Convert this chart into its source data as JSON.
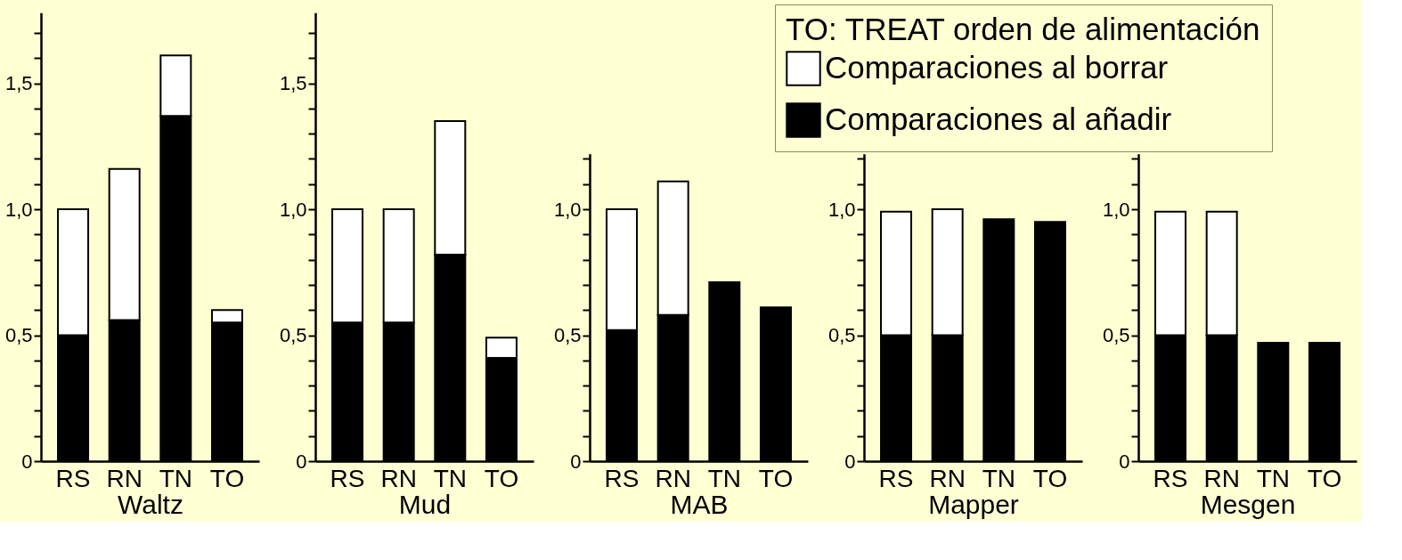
{
  "chart_data": [
    {
      "type": "bar",
      "stacked": true,
      "xlabel": "Waltz",
      "categories": [
        "RS",
        "RN",
        "TN",
        "TO"
      ],
      "series": [
        {
          "color": "#000000",
          "values": [
            0.5,
            0.56,
            1.37,
            0.55
          ]
        },
        {
          "color": "#ffffff",
          "values": [
            0.5,
            0.6,
            0.24,
            0.05
          ]
        }
      ],
      "ylim": [
        0,
        1.78
      ],
      "yticks": [
        {
          "value": 0,
          "label": "0"
        },
        {
          "value": 0.1,
          "label": null
        },
        {
          "value": 0.2,
          "label": null
        },
        {
          "value": 0.3,
          "label": null
        },
        {
          "value": 0.4,
          "label": null
        },
        {
          "value": 0.5,
          "label": "0,5"
        },
        {
          "value": 0.6,
          "label": null
        },
        {
          "value": 0.7,
          "label": null
        },
        {
          "value": 0.8,
          "label": null
        },
        {
          "value": 0.9,
          "label": null
        },
        {
          "value": 1.0,
          "label": "1,0"
        },
        {
          "value": 1.1,
          "label": null
        },
        {
          "value": 1.2,
          "label": null
        },
        {
          "value": 1.3,
          "label": null
        },
        {
          "value": 1.4,
          "label": null
        },
        {
          "value": 1.5,
          "label": "1,5"
        },
        {
          "value": 1.6,
          "label": null
        },
        {
          "value": 1.7,
          "label": null
        }
      ],
      "grid": false
    },
    {
      "type": "bar",
      "stacked": true,
      "xlabel": "Mud",
      "categories": [
        "RS",
        "RN",
        "TN",
        "TO"
      ],
      "series": [
        {
          "color": "#000000",
          "values": [
            0.55,
            0.55,
            0.82,
            0.41
          ]
        },
        {
          "color": "#ffffff",
          "values": [
            0.45,
            0.45,
            0.53,
            0.08
          ]
        }
      ],
      "ylim": [
        0,
        1.78
      ],
      "yticks": [
        {
          "value": 0,
          "label": "0"
        },
        {
          "value": 0.1,
          "label": null
        },
        {
          "value": 0.2,
          "label": null
        },
        {
          "value": 0.3,
          "label": null
        },
        {
          "value": 0.4,
          "label": null
        },
        {
          "value": 0.5,
          "label": "0,5"
        },
        {
          "value": 0.6,
          "label": null
        },
        {
          "value": 0.7,
          "label": null
        },
        {
          "value": 0.8,
          "label": null
        },
        {
          "value": 0.9,
          "label": null
        },
        {
          "value": 1.0,
          "label": "1,0"
        },
        {
          "value": 1.1,
          "label": null
        },
        {
          "value": 1.2,
          "label": null
        },
        {
          "value": 1.3,
          "label": null
        },
        {
          "value": 1.4,
          "label": null
        },
        {
          "value": 1.5,
          "label": "1,5"
        },
        {
          "value": 1.6,
          "label": null
        },
        {
          "value": 1.7,
          "label": null
        }
      ],
      "grid": false
    },
    {
      "type": "bar",
      "stacked": true,
      "xlabel": "MAB",
      "categories": [
        "RS",
        "RN",
        "TN",
        "TO"
      ],
      "series": [
        {
          "color": "#000000",
          "values": [
            0.52,
            0.58,
            0.71,
            0.61
          ]
        },
        {
          "color": "#ffffff",
          "values": [
            0.48,
            0.53,
            null,
            null
          ]
        }
      ],
      "ylim": [
        0,
        1.22
      ],
      "yticks": [
        {
          "value": 0,
          "label": "0"
        },
        {
          "value": 0.1,
          "label": null
        },
        {
          "value": 0.2,
          "label": null
        },
        {
          "value": 0.3,
          "label": null
        },
        {
          "value": 0.4,
          "label": null
        },
        {
          "value": 0.5,
          "label": "0,5"
        },
        {
          "value": 0.6,
          "label": null
        },
        {
          "value": 0.7,
          "label": null
        },
        {
          "value": 0.8,
          "label": null
        },
        {
          "value": 0.9,
          "label": null
        },
        {
          "value": 1.0,
          "label": "1,0"
        },
        {
          "value": 1.1,
          "label": null
        },
        {
          "value": 1.2,
          "label": null
        }
      ],
      "grid": false
    },
    {
      "type": "bar",
      "stacked": true,
      "xlabel": "Mapper",
      "categories": [
        "RS",
        "RN",
        "TN",
        "TO"
      ],
      "series": [
        {
          "name": "Comparaciones al añadir",
          "color": "#000000",
          "values": [
            0.5,
            0.5,
            0.96,
            0.95
          ]
        },
        {
          "name": "Comparaciones al borrar",
          "color": "#ffffff",
          "values": [
            0.49,
            0.5,
            null,
            null
          ]
        }
      ],
      "ylim": [
        0,
        1.22
      ],
      "yticks": [
        {
          "value": 0,
          "label": "0"
        },
        {
          "value": 0.1,
          "label": null
        },
        {
          "value": 0.2,
          "label": null
        },
        {
          "value": 0.3,
          "label": null
        },
        {
          "value": 0.4,
          "label": null
        },
        {
          "value": 0.5,
          "label": "0,5"
        },
        {
          "value": 0.6,
          "label": null
        },
        {
          "value": 0.7,
          "label": null
        },
        {
          "value": 0.8,
          "label": null
        },
        {
          "value": 0.9,
          "label": null
        },
        {
          "value": 1.0,
          "label": "1,0"
        },
        {
          "value": 1.1,
          "label": null
        },
        {
          "value": 1.2,
          "label": null
        }
      ],
      "grid": false,
      "legend": "top right",
      "legend_title": "TO: TREAT orden de alimentación"
    },
    {
      "type": "bar",
      "stacked": true,
      "xlabel": "Mesgen",
      "categories": [
        "RS",
        "RN",
        "TN",
        "TO"
      ],
      "series": [
        {
          "color": "#000000",
          "values": [
            0.5,
            0.5,
            0.47,
            0.47
          ]
        },
        {
          "color": "#ffffff",
          "values": [
            0.49,
            0.49,
            null,
            null
          ]
        }
      ],
      "ylim": [
        0,
        1.22
      ],
      "yticks": [
        {
          "value": 0,
          "label": "0"
        },
        {
          "value": 0.1,
          "label": null
        },
        {
          "value": 0.2,
          "label": null
        },
        {
          "value": 0.3,
          "label": null
        },
        {
          "value": 0.4,
          "label": null
        },
        {
          "value": 0.5,
          "label": "0,5"
        },
        {
          "value": 0.6,
          "label": null
        },
        {
          "value": 0.7,
          "label": null
        },
        {
          "value": 0.8,
          "label": null
        },
        {
          "value": 0.9,
          "label": null
        },
        {
          "value": 1.0,
          "label": "1,0"
        },
        {
          "value": 1.1,
          "label": null
        },
        {
          "value": 1.2,
          "label": null
        }
      ],
      "grid": false
    }
  ]
}
